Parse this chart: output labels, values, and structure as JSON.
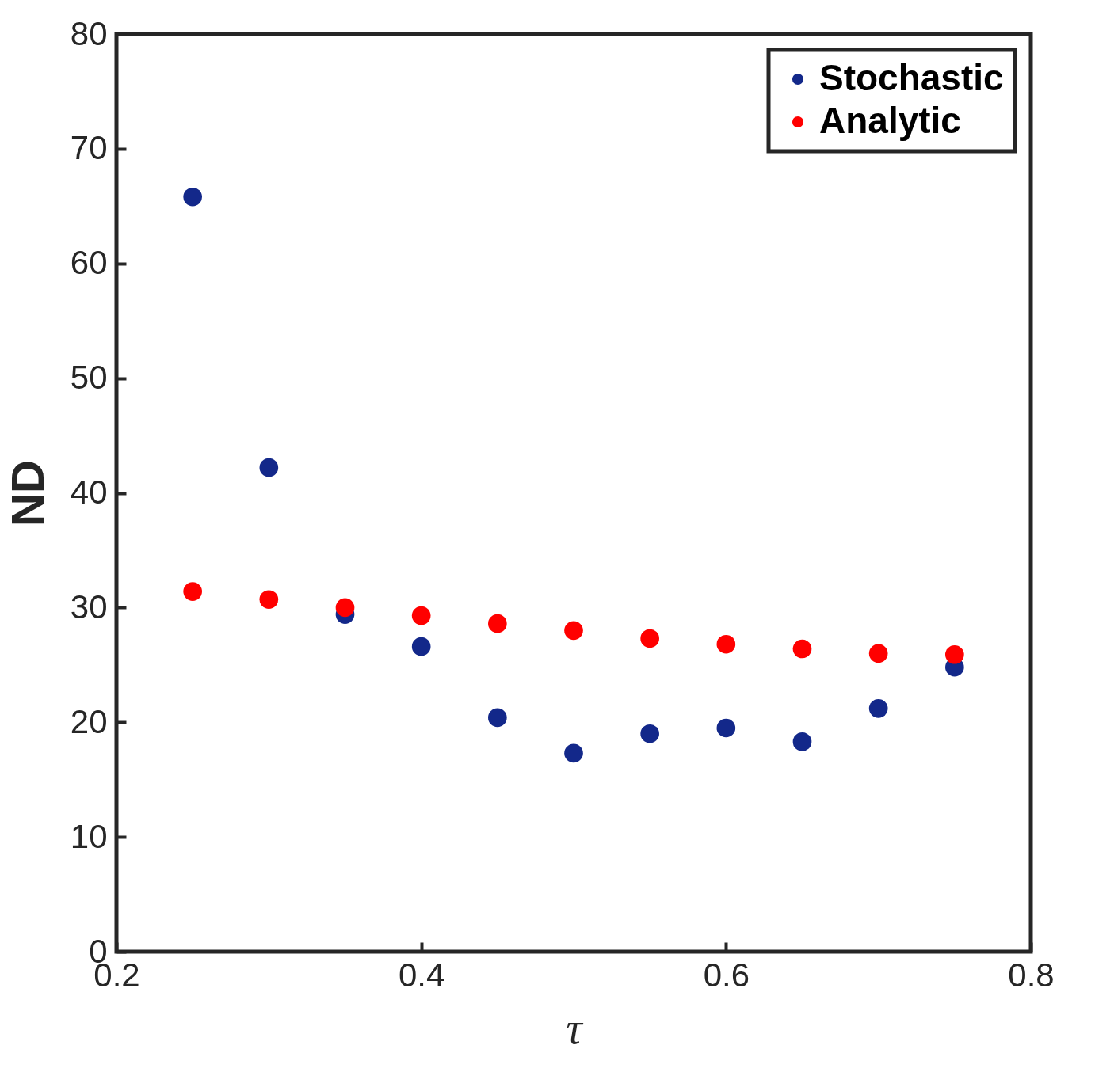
{
  "chart_data": {
    "type": "scatter",
    "xlabel": "τ",
    "ylabel": "ND",
    "x": [
      0.25,
      0.3,
      0.35,
      0.4,
      0.45,
      0.5,
      0.55,
      0.6,
      0.65,
      0.7,
      0.75
    ],
    "series": [
      {
        "name": "Stochastic",
        "color": "#13288a",
        "values": [
          65.8,
          42.2,
          29.4,
          26.6,
          20.4,
          17.3,
          19.0,
          19.5,
          18.3,
          21.2,
          24.8
        ]
      },
      {
        "name": "Analytic",
        "color": "#ff0000",
        "values": [
          31.4,
          30.7,
          30.0,
          29.3,
          28.6,
          28.0,
          27.3,
          26.8,
          26.4,
          26.0,
          25.9
        ]
      }
    ],
    "xlim": [
      0.2,
      0.8
    ],
    "xticks": [
      0.2,
      0.4,
      0.6,
      0.8
    ],
    "ylim": [
      0,
      80
    ],
    "yticks": [
      0,
      10,
      20,
      30,
      40,
      50,
      60,
      70,
      80
    ],
    "legend": "top right",
    "marker": "circle",
    "grid": false
  }
}
